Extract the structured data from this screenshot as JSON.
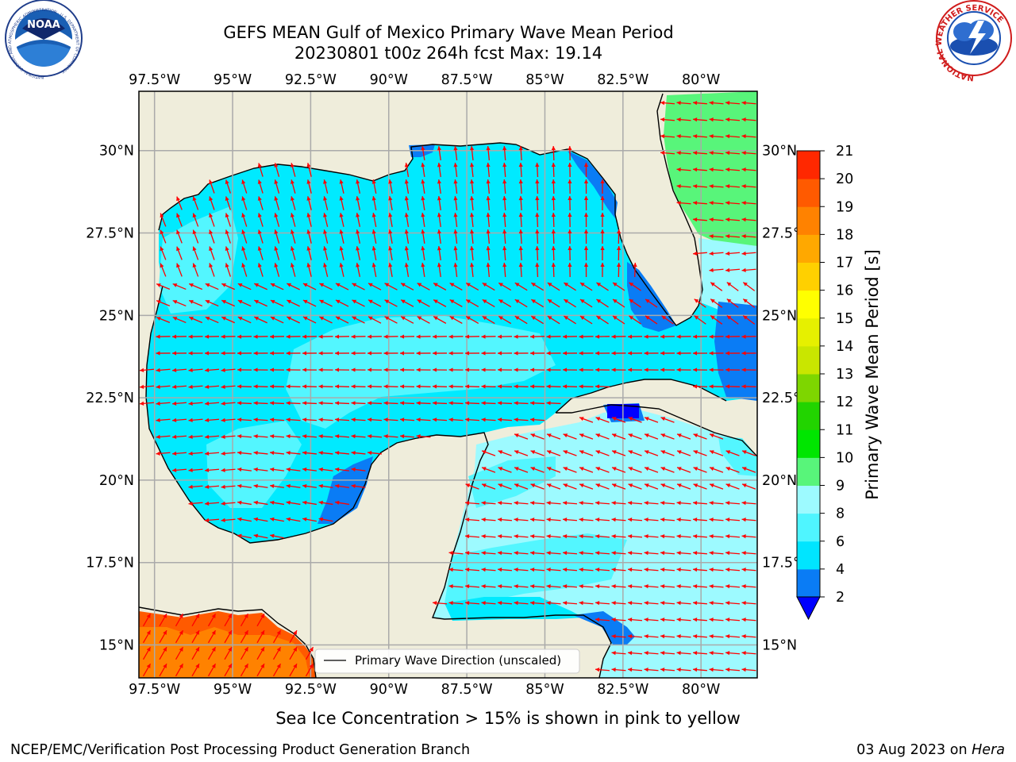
{
  "title": {
    "line1": "GEFS MEAN Gulf of Mexico Primary Wave Mean Period",
    "line2": "20230801 t00z 264h fcst   Max: 19.14"
  },
  "axes": {
    "lon_labels": [
      "97.5°W",
      "95°W",
      "92.5°W",
      "90°W",
      "87.5°W",
      "85°W",
      "82.5°W",
      "80°W"
    ],
    "lon_values": [
      -97.5,
      -95,
      -92.5,
      -90,
      -87.5,
      -85,
      -82.5,
      -80
    ],
    "lat_labels": [
      "30°N",
      "27.5°N",
      "25°N",
      "22.5°N",
      "20°N",
      "17.5°N",
      "15°N"
    ],
    "lat_values": [
      30,
      27.5,
      25,
      22.5,
      20,
      17.5,
      15
    ],
    "extent": {
      "lon_min": -98,
      "lon_max": -78.2,
      "lat_min": 14,
      "lat_max": 31.8
    }
  },
  "colorbar": {
    "label": "Primary Wave Mean Period [s]",
    "ticks": [
      "2",
      "4",
      "6",
      "8",
      "9",
      "10",
      "11",
      "12",
      "13",
      "14",
      "15",
      "16",
      "17",
      "18",
      "19",
      "20",
      "21"
    ],
    "colors": [
      "#0a7cf5",
      "#00e5ff",
      "#4ff5ff",
      "#9dfaff",
      "#58f57a",
      "#00e600",
      "#22d400",
      "#7ed600",
      "#c9e600",
      "#e6f000",
      "#ffff00",
      "#ffd000",
      "#ffa800",
      "#ff8200",
      "#ff5a00",
      "#ff2800",
      "#ff0000"
    ],
    "under_color": "#0000ff"
  },
  "map_colors": {
    "land": "#efeddb",
    "low": "#0a7cf5",
    "very_low": "#0000ff",
    "mid": "#00eaff",
    "light": "#53f6ff",
    "pale": "#9dfaff",
    "green": "#58f57a",
    "orange_dark": "#ff5a00",
    "orange": "#ff8200",
    "arrow": "#ff0000"
  },
  "legend": {
    "label": "Primary Wave Direction (unscaled)"
  },
  "note": "Sea Ice Concentration > 15% is shown in pink to yellow",
  "footer": {
    "left": "NCEP/EMC/Verification Post Processing Product Generation Branch",
    "date": "03 Aug 2023 on",
    "machine": "Hera"
  },
  "logos": {
    "noaa_text": "NOAA",
    "noaa_ring": "NATIONAL OCEANIC AND ATMOSPHERIC ADMINISTRATION · U.S. DEPARTMENT OF COMMERCE",
    "nws_ring": "NATIONAL WEATHER SERVICE"
  }
}
